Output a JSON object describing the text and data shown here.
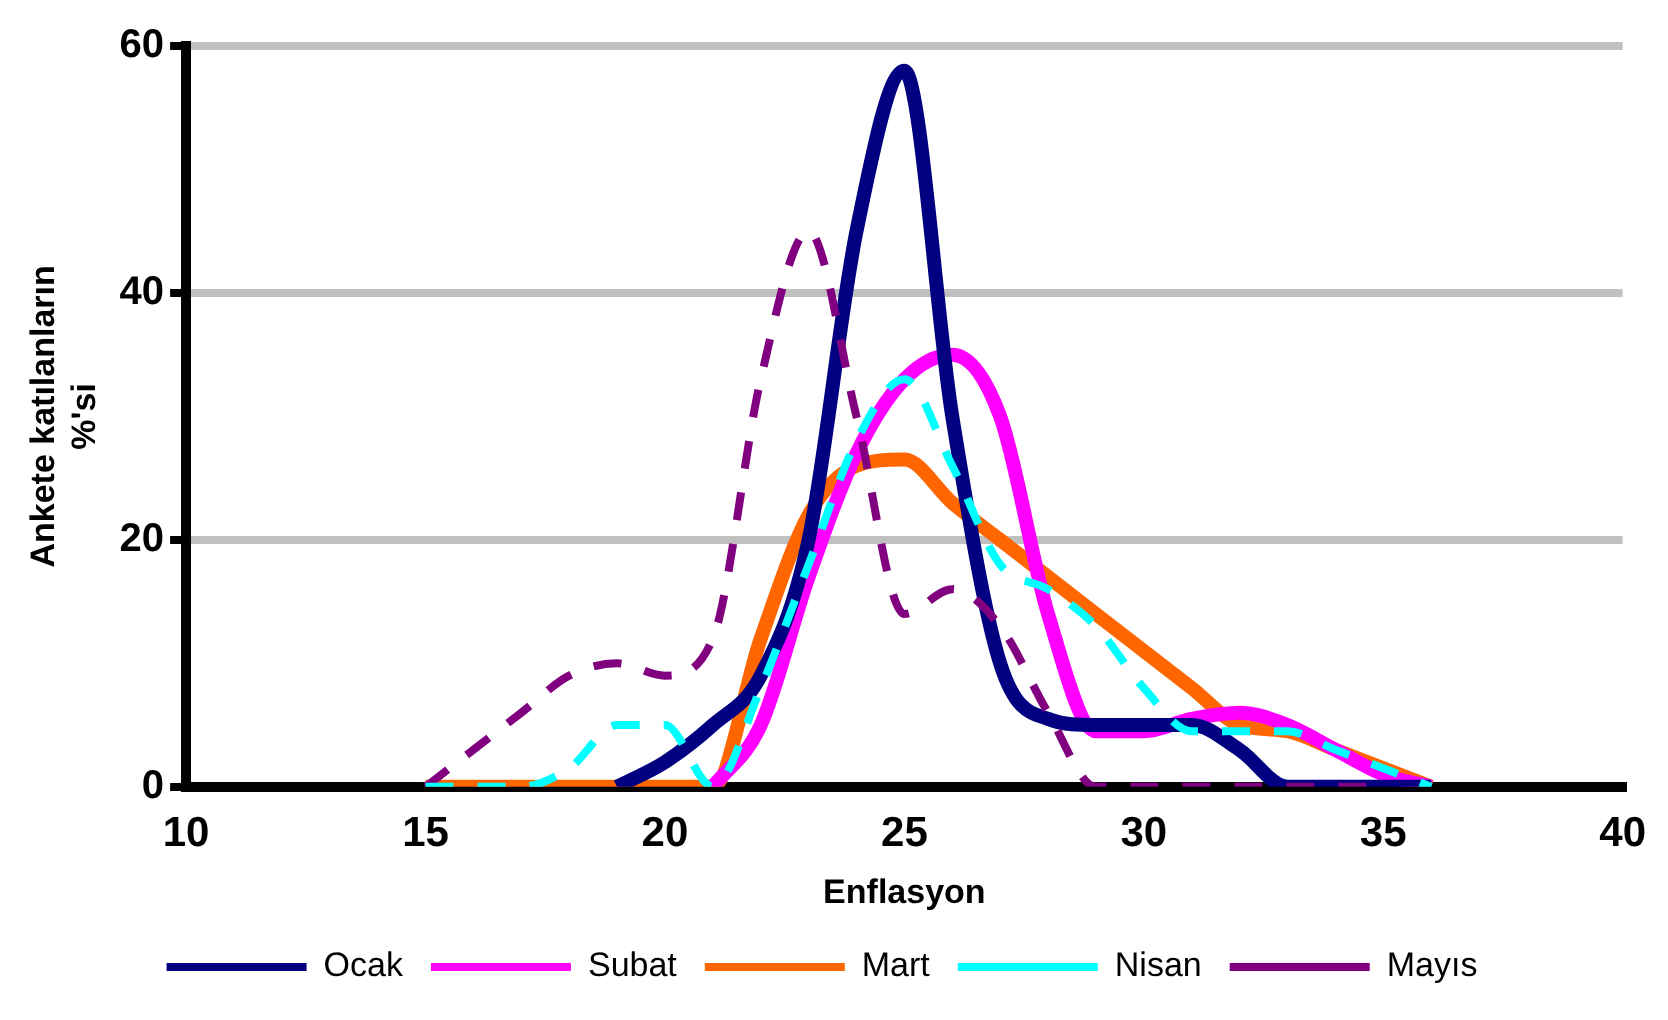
{
  "chart_data": {
    "type": "line",
    "xlabel": "Enflasyon",
    "ylabel": "Ankete katılanların %'si",
    "x": [
      15,
      16,
      17,
      18,
      19,
      20,
      21,
      22,
      23,
      24,
      25,
      26,
      27,
      28,
      29,
      30,
      31,
      32,
      33,
      34,
      35,
      36
    ],
    "series": [
      {
        "name": "Ocak",
        "color": "#000080",
        "line_style": "solid",
        "values": [
          null,
          null,
          null,
          null,
          0,
          2,
          5,
          9,
          20,
          45,
          58,
          30,
          10,
          5.5,
          5,
          5,
          5,
          3,
          0,
          0,
          0,
          0
        ]
      },
      {
        "name": "Subat",
        "color": "#ff00ff",
        "line_style": "solid",
        "values": [
          null,
          null,
          null,
          null,
          null,
          null,
          0,
          5,
          17,
          27,
          33,
          35,
          30,
          14,
          4.5,
          4.5,
          5.5,
          6,
          5,
          3,
          1,
          0
        ]
      },
      {
        "name": "Mart",
        "color": "#ff6600",
        "line_style": "solid",
        "values": [
          0,
          0,
          0,
          0,
          0,
          0,
          0,
          12,
          22,
          26,
          26.5,
          23,
          20,
          17,
          14,
          11,
          8,
          5,
          4.5,
          3,
          1.5,
          0
        ]
      },
      {
        "name": "Nisan",
        "color": "#00ffff",
        "line_style": "dashed",
        "values": [
          0,
          0,
          0,
          1.5,
          5,
          5,
          0,
          8,
          18,
          28,
          33,
          26,
          18,
          16,
          13,
          8,
          4.5,
          4.5,
          4.5,
          3,
          1.5,
          0
        ]
      },
      {
        "name": "Mayıs",
        "color": "#800080",
        "line_style": "dashed",
        "values": [
          0,
          3,
          6,
          9,
          10,
          9,
          12,
          33,
          45,
          30,
          14,
          16,
          13,
          6,
          0,
          0,
          0,
          0,
          0,
          0,
          0,
          null
        ]
      }
    ],
    "xlim": [
      10,
      40
    ],
    "xticks": [
      10,
      15,
      20,
      25,
      30,
      35,
      40
    ],
    "ylim": [
      0,
      60
    ],
    "yticks": [
      0,
      20,
      40,
      60
    ],
    "grid": "y",
    "legend": "bottom",
    "marker": "none"
  }
}
